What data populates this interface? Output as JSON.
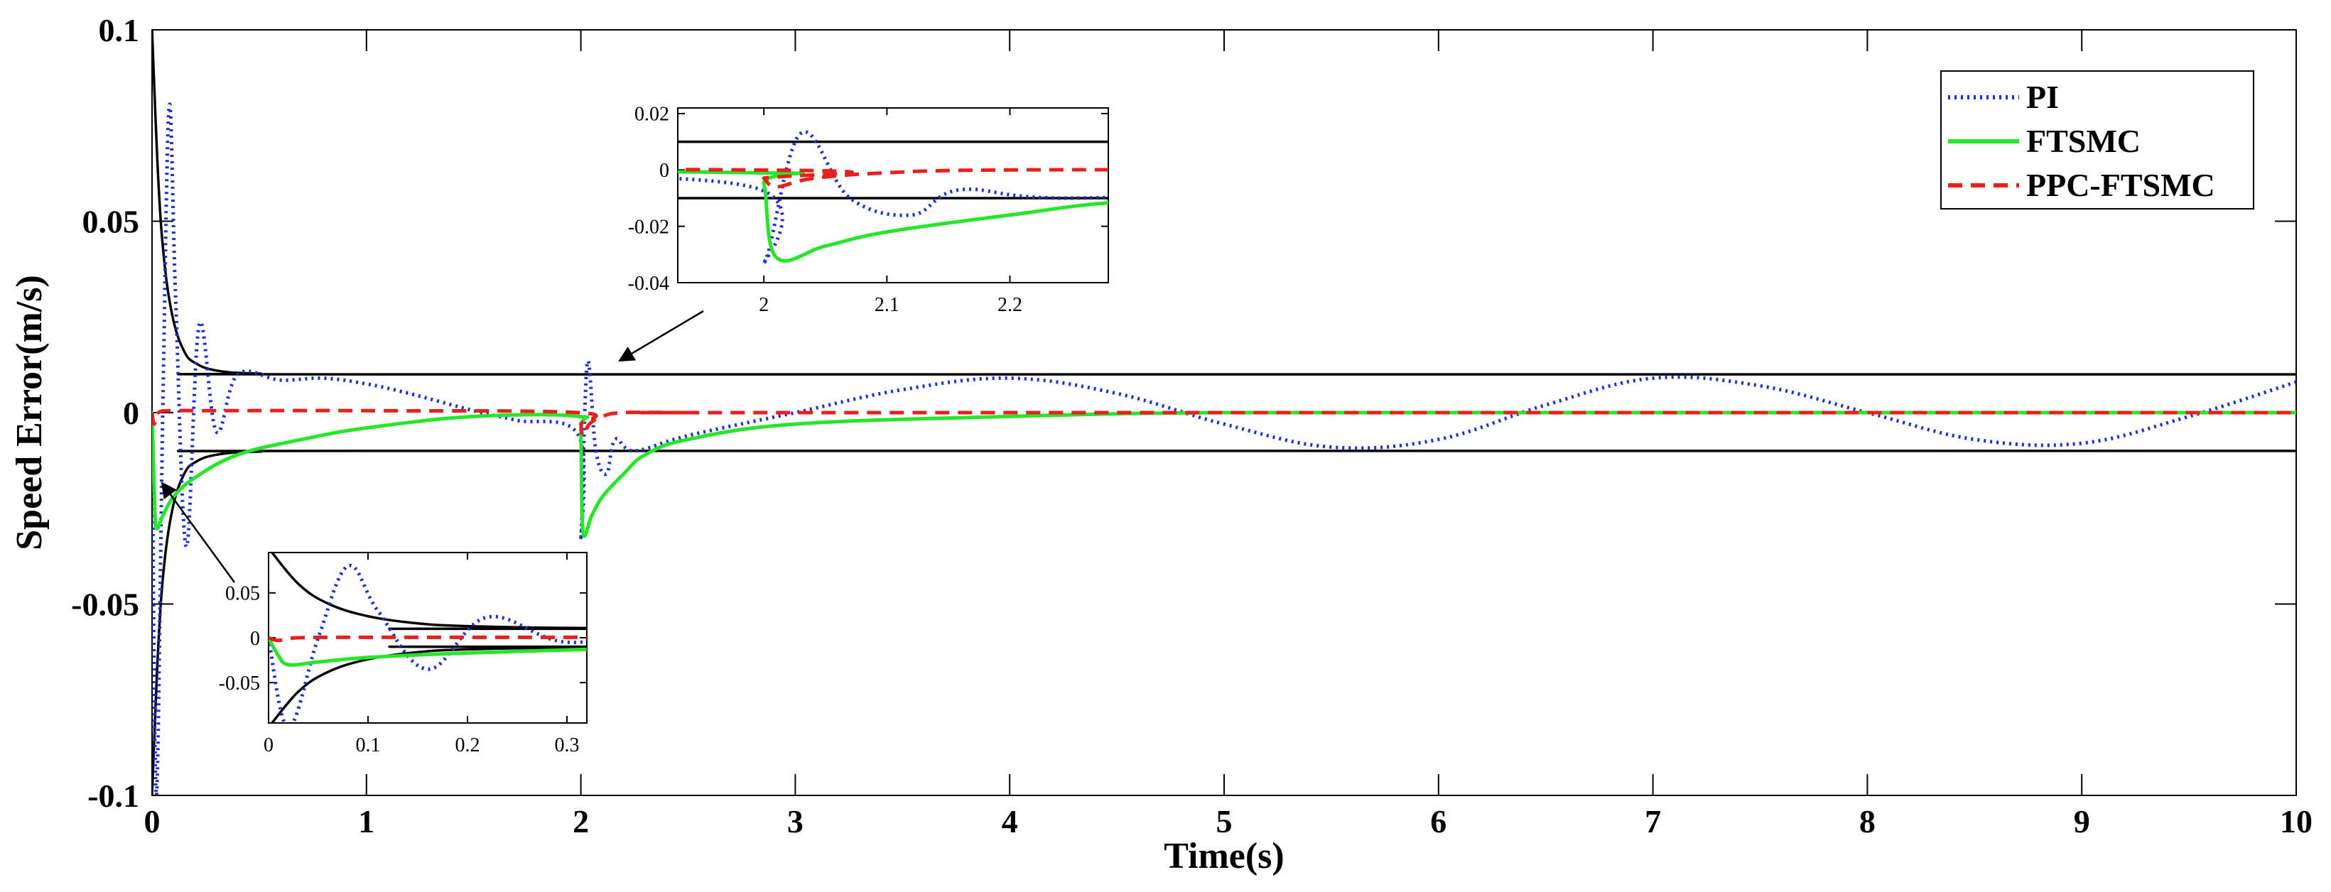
{
  "chart_data": [
    {
      "type": "line",
      "title": "",
      "xlabel": "Time(s)",
      "ylabel": "Speed Error(m/s)",
      "xlim": [
        0,
        10
      ],
      "ylim": [
        -0.1,
        0.1
      ],
      "x_ticks": [
        "0",
        "1",
        "2",
        "3",
        "4",
        "5",
        "6",
        "7",
        "8",
        "9",
        "10"
      ],
      "y_ticks": [
        "-0.1",
        "-0.05",
        "0",
        "0.05",
        "0.1"
      ],
      "grid": false,
      "legend_position": "top-right",
      "colors": {
        "PI": "#1f2fd6",
        "FTSMC": "#27e62a",
        "PPC-FTSMC": "#e8201c",
        "bounds": "#000000"
      },
      "series": [
        {
          "name": "PI",
          "style": "dotted",
          "x": [
            0,
            0.02,
            0.05,
            0.08,
            0.11,
            0.16,
            0.22,
            0.3,
            0.4,
            0.6,
            0.8,
            1.0,
            1.2,
            1.5,
            1.7,
            1.99,
            2.0,
            2.03,
            2.07,
            2.12,
            2.16,
            2.25,
            2.5,
            3.0,
            3.5,
            4.0,
            4.5,
            5.0,
            5.5,
            6.0,
            6.5,
            7.0,
            7.5,
            8.0,
            8.5,
            9.0,
            9.5,
            10.0
          ],
          "y": [
            0,
            -0.1,
            0.0,
            0.08,
            0.03,
            -0.035,
            0.023,
            -0.005,
            0.01,
            0.0085,
            0.009,
            0.0075,
            0.005,
            0.0005,
            -0.002,
            -0.006,
            -0.033,
            0.013,
            -0.01,
            -0.016,
            -0.007,
            -0.01,
            -0.006,
            0.0,
            0.006,
            0.009,
            0.005,
            -0.003,
            -0.009,
            -0.007,
            0.002,
            0.009,
            0.007,
            0.0,
            -0.007,
            -0.008,
            -0.001,
            0.008
          ]
        },
        {
          "name": "FTSMC",
          "style": "solid",
          "x": [
            0,
            0.01,
            0.02,
            0.05,
            0.1,
            0.2,
            0.4,
            0.7,
            1.0,
            1.5,
            1.99,
            2.0,
            2.01,
            2.05,
            2.1,
            2.2,
            2.3,
            2.5,
            3.0,
            4.0,
            5.0,
            7.0,
            10.0
          ],
          "y": [
            0,
            -0.02,
            -0.03,
            -0.027,
            -0.022,
            -0.017,
            -0.011,
            -0.007,
            -0.004,
            -0.001,
            -0.001,
            -0.005,
            -0.031,
            -0.027,
            -0.022,
            -0.016,
            -0.011,
            -0.007,
            -0.003,
            -0.001,
            0.0,
            0.0,
            0.0
          ]
        },
        {
          "name": "PPC-FTSMC",
          "style": "dashed",
          "x": [
            0,
            0.01,
            0.03,
            0.1,
            0.3,
            1.0,
            1.99,
            2.0,
            2.01,
            2.04,
            2.1,
            2.2,
            2.5,
            3.0,
            10.0
          ],
          "y": [
            0,
            -0.003,
            0.0,
            0.0005,
            0.0005,
            0.0005,
            0.0,
            -0.003,
            -0.006,
            -0.003,
            -0.001,
            0.0,
            0.0,
            0.0,
            0.0
          ]
        },
        {
          "name": "",
          "style": "solid",
          "x": [
            0,
            0.03,
            0.06,
            0.1,
            0.15,
            0.2,
            0.3,
            0.5,
            1.0,
            10.0
          ],
          "y": [
            0.1,
            0.06,
            0.038,
            0.024,
            0.016,
            0.013,
            0.011,
            0.0102,
            0.01,
            0.01
          ]
        },
        {
          "name": "",
          "style": "solid",
          "x": [
            0,
            0.03,
            0.06,
            0.1,
            0.15,
            0.2,
            0.3,
            0.5,
            1.0,
            10.0
          ],
          "y": [
            -0.1,
            -0.06,
            -0.038,
            -0.024,
            -0.016,
            -0.013,
            -0.011,
            -0.0102,
            -0.01,
            -0.01
          ]
        }
      ]
    },
    {
      "type": "line",
      "xlim": [
        1.93,
        2.28
      ],
      "ylim": [
        -0.04,
        0.022
      ],
      "x_ticks": [
        "2",
        "2.1",
        "2.2"
      ],
      "y_ticks": [
        "0.02",
        "0",
        "-0.02",
        "-0.04"
      ]
    },
    {
      "type": "line",
      "xlim": [
        0,
        0.32
      ],
      "ylim": [
        -0.095,
        0.095
      ],
      "x_ticks": [
        "0",
        "0.1",
        "0.2",
        "0.3"
      ],
      "y_ticks": [
        "0.05",
        "0",
        "-0.05"
      ]
    }
  ]
}
